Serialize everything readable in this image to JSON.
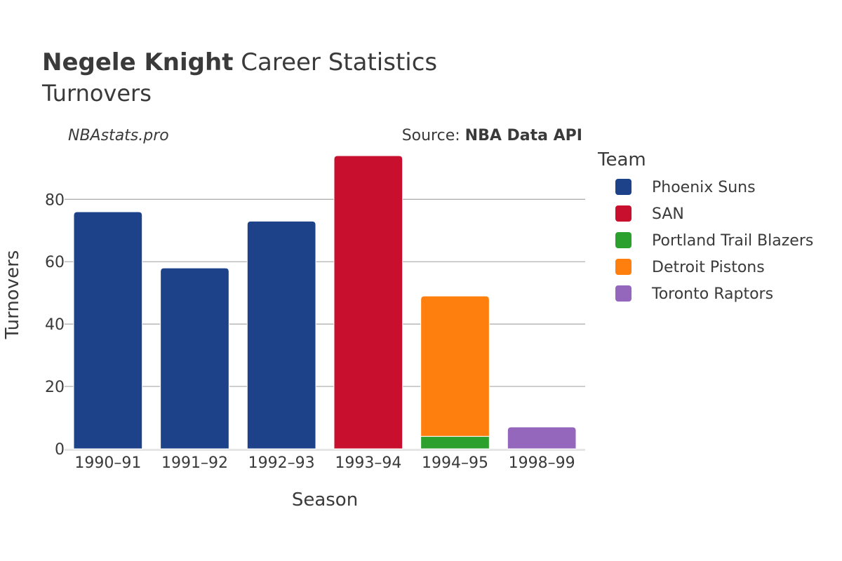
{
  "header": {
    "player_name": "Negele Knight",
    "title_rest": " Career Statistics",
    "subtitle": "Turnovers"
  },
  "watermark": "NBAstats.pro",
  "source": {
    "prefix": "Source: ",
    "name": "NBA Data API"
  },
  "colors": {
    "phoenix_suns": "#1d428a",
    "san": "#c8102e",
    "portland": "#2ca02c",
    "detroit": "#ff7f0e",
    "toronto": "#9467bd"
  },
  "chart_data": {
    "type": "bar",
    "stacked": true,
    "title": "Negele Knight Career Statistics",
    "subtitle": "Turnovers",
    "xlabel": "Season",
    "ylabel": "Turnovers",
    "ylim": [
      0,
      94
    ],
    "yticks": [
      0,
      20,
      40,
      60,
      80
    ],
    "grid": true,
    "legend_title": "Team",
    "legend_position": "right",
    "categories": [
      "1990–91",
      "1991–92",
      "1992–93",
      "1993–94",
      "1994–95",
      "1998–99"
    ],
    "series": [
      {
        "name": "Phoenix Suns",
        "color": "#1d428a",
        "values": [
          76,
          58,
          73,
          0,
          0,
          0
        ]
      },
      {
        "name": "SAN",
        "color": "#c8102e",
        "values": [
          0,
          0,
          0,
          94,
          0,
          0
        ]
      },
      {
        "name": "Portland Trail Blazers",
        "color": "#2ca02c",
        "values": [
          0,
          0,
          0,
          0,
          4,
          0
        ]
      },
      {
        "name": "Detroit Pistons",
        "color": "#ff7f0e",
        "values": [
          0,
          0,
          0,
          0,
          45,
          0
        ]
      },
      {
        "name": "Toronto Raptors",
        "color": "#9467bd",
        "values": [
          0,
          0,
          0,
          0,
          0,
          7
        ]
      }
    ]
  }
}
